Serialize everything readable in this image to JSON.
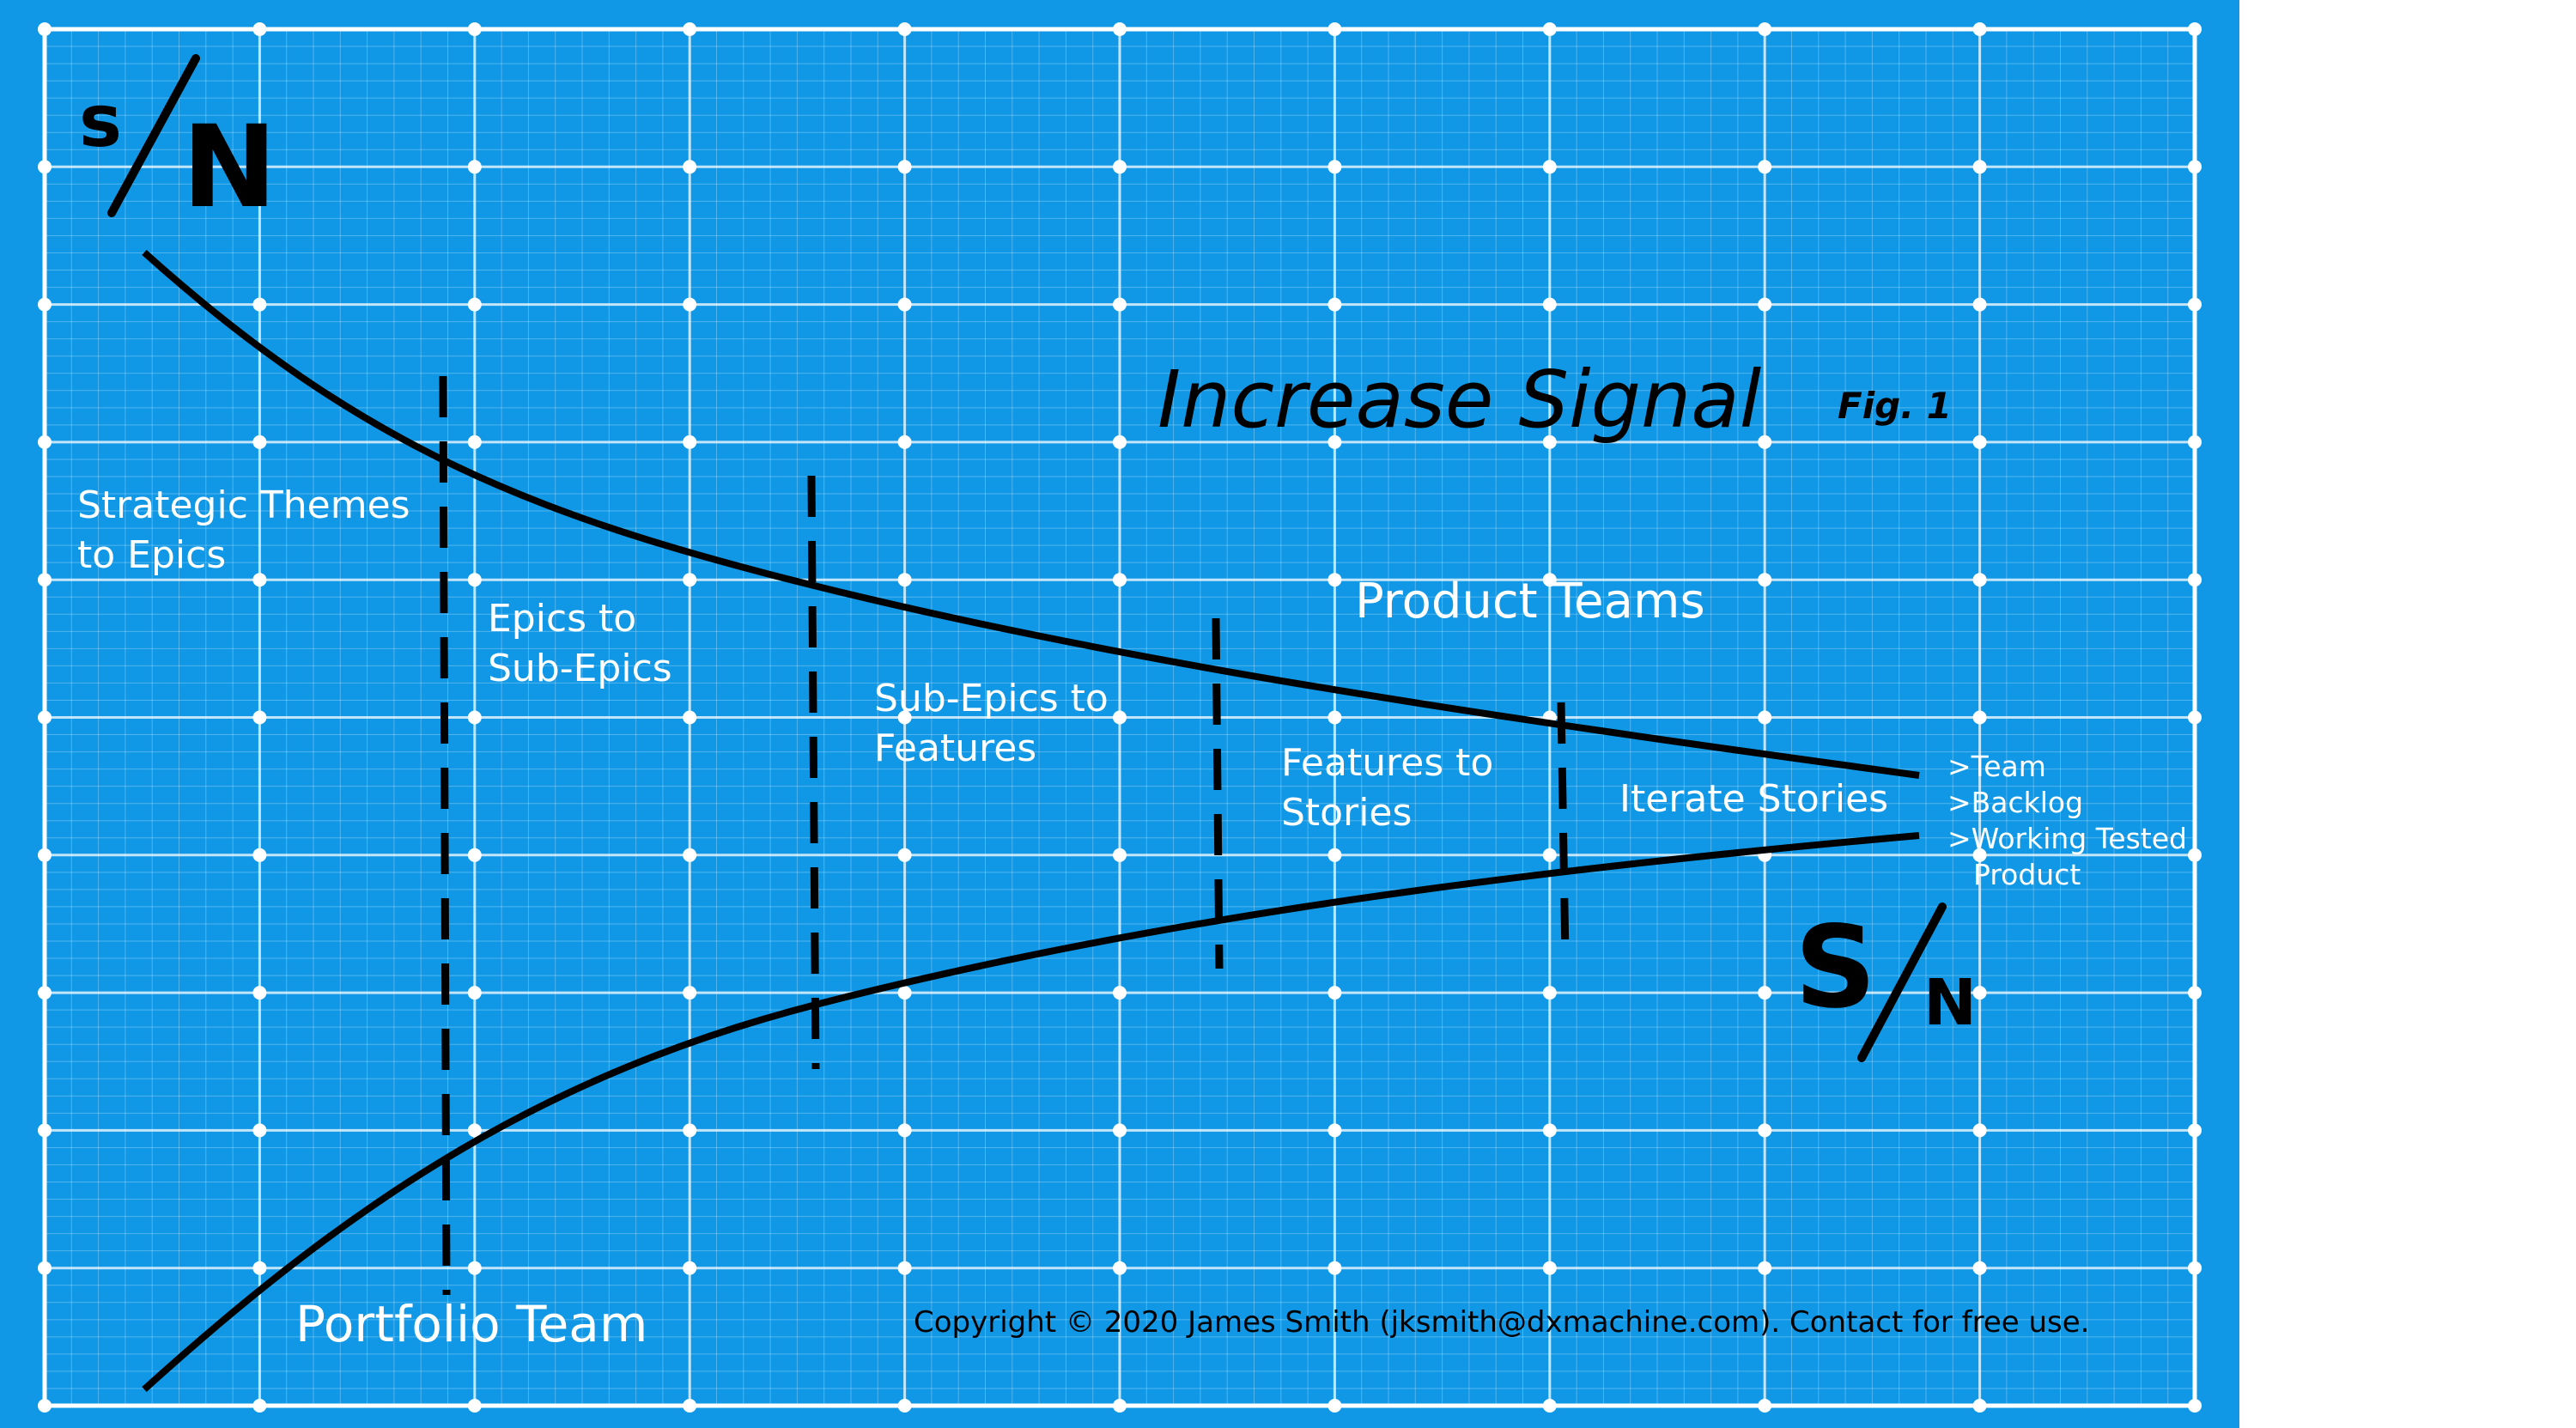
{
  "title": "Increase Signal",
  "fig_label": "Fig. 1",
  "sn_top": {
    "s": "s",
    "n": "N"
  },
  "sn_bottom": {
    "s": "S",
    "n": "N"
  },
  "stages": [
    {
      "line1": "Strategic Themes",
      "line2": "to Epics"
    },
    {
      "line1": "Epics to",
      "line2": "Sub-Epics"
    },
    {
      "line1": "Sub-Epics to",
      "line2": "Features"
    },
    {
      "line1": "Features to",
      "line2": "Stories"
    },
    {
      "line1": "Iterate Stories",
      "line2": ""
    }
  ],
  "product_teams": "Product Teams",
  "portfolio_team": "Portfolio Team",
  "outputs": [
    ">Team",
    ">Backlog",
    ">Working Tested",
    "Product"
  ],
  "copyright": "Copyright © 2020 James Smith (jksmith@dxmachine.com). Contact for free use.",
  "colors": {
    "board": "#1098e6",
    "grid": "#ffffff",
    "ink": "#000000"
  }
}
